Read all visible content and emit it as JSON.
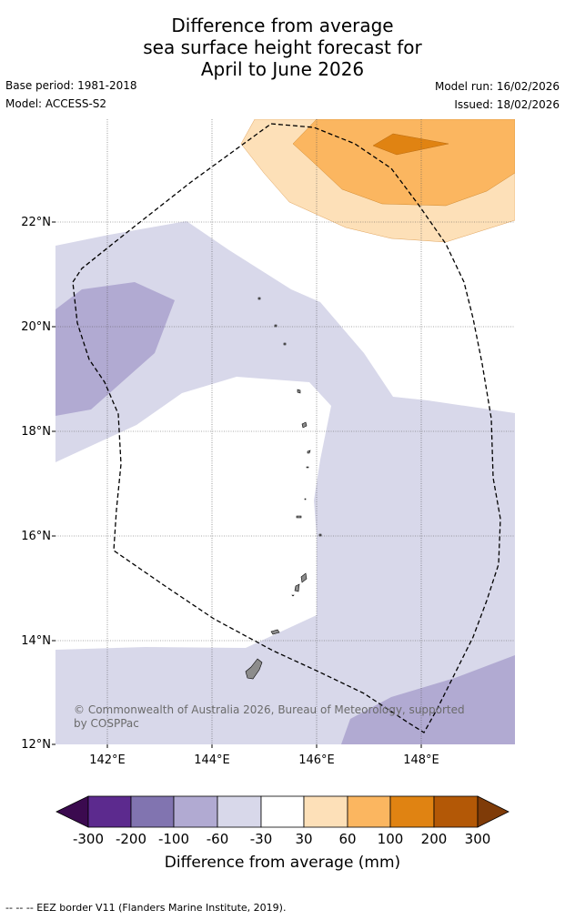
{
  "title": {
    "line1": "Difference from average",
    "line2": "sea surface height forecast for",
    "line3": "April to June 2026"
  },
  "meta": {
    "base_period": "Base period: 1981-2018",
    "model": "Model: ACCESS-S2",
    "model_run": "Model run: 16/02/2026",
    "issued": "Issued: 18/02/2026"
  },
  "map": {
    "lat_ticks": [
      "22°N",
      "20°N",
      "18°N",
      "16°N",
      "14°N",
      "12°N"
    ],
    "lon_ticks": [
      "142°E",
      "144°E",
      "146°E",
      "148°E"
    ],
    "copyright": "© Commonwealth of Australia 2026, Bureau of Meteorology, supported by COSPPac",
    "colors": {
      "neg_light": "#d8d8ea",
      "neg_mid": "#b1aad2",
      "pos_light": "#fde0b8",
      "pos_mid": "#fbb660",
      "pos_dark": "#e08312",
      "land": "#8c8c8c"
    }
  },
  "colorbar": {
    "label": "Difference from average (mm)",
    "ticks": [
      "-300",
      "-200",
      "-100",
      "-60",
      "-30",
      "30",
      "60",
      "100",
      "200",
      "300"
    ],
    "colors": [
      "#3b0a4f",
      "#5c2a8e",
      "#8174b0",
      "#b1aad2",
      "#d8d8ea",
      "#ffffff",
      "#fde0b8",
      "#fbb660",
      "#e08312",
      "#b35806",
      "#7f3b08"
    ]
  },
  "footer": "--  --  -- EEZ border V11 (Flanders Marine Institute, 2019)."
}
